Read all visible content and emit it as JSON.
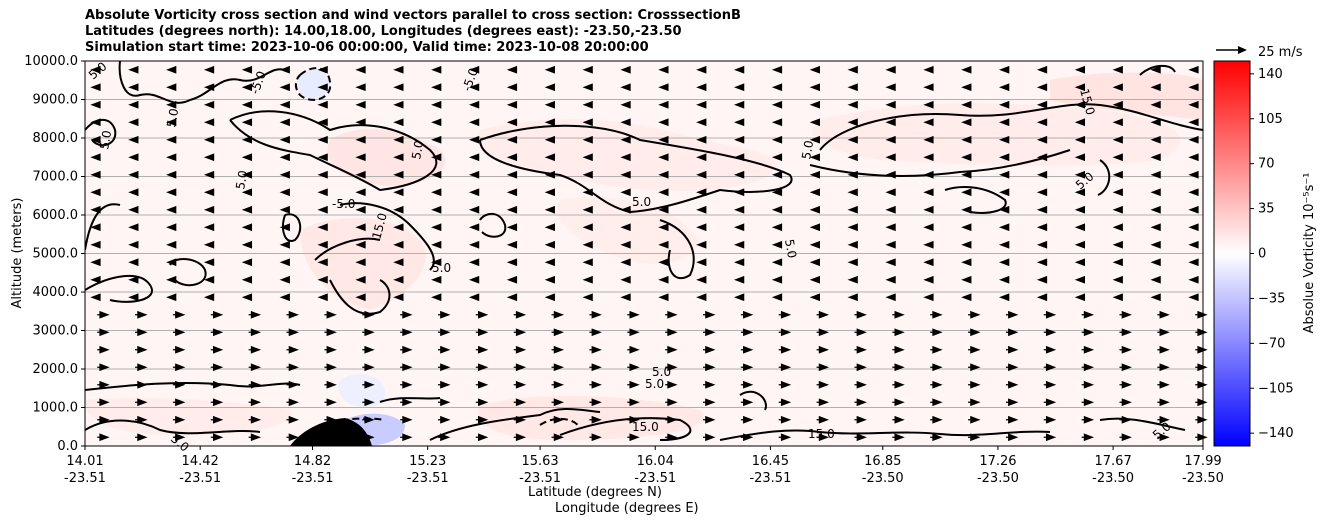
{
  "title_lines": [
    "Absolute Vorticity cross section and wind vectors parallel to cross section: CrosssectionB",
    "Latitudes (degrees north): 14.00,18.00, Longitudes (degrees east): -23.50,-23.50",
    "Simulation start time: 2023-10-06 00:00:00, Valid time: 2023-10-08 20:00:00"
  ],
  "quiver_key_label": "25 m/s",
  "chart_data": {
    "type": "contour",
    "ylabel": "Altitude (meters)",
    "xlabel_line1": "Latitude (degrees N)",
    "xlabel_line2": "Longitude (degrees E)",
    "ylim": [
      0,
      10000
    ],
    "yticks": [
      "0.0",
      "1000.0",
      "2000.0",
      "3000.0",
      "4000.0",
      "5000.0",
      "6000.0",
      "7000.0",
      "8000.0",
      "9000.0",
      "10000.0"
    ],
    "xticks": [
      {
        "lat": "14.01",
        "lon": "-23.51"
      },
      {
        "lat": "14.42",
        "lon": "-23.51"
      },
      {
        "lat": "14.82",
        "lon": "-23.51"
      },
      {
        "lat": "15.23",
        "lon": "-23.51"
      },
      {
        "lat": "15.63",
        "lon": "-23.51"
      },
      {
        "lat": "16.04",
        "lon": "-23.51"
      },
      {
        "lat": "16.45",
        "lon": "-23.51"
      },
      {
        "lat": "16.85",
        "lon": "-23.50"
      },
      {
        "lat": "17.26",
        "lon": "-23.50"
      },
      {
        "lat": "17.67",
        "lon": "-23.50"
      },
      {
        "lat": "17.99",
        "lon": "-23.50"
      }
    ],
    "grid": "horizontal",
    "colorbar": {
      "label": "Absolue Vorticity 10⁻⁵s⁻¹",
      "range": [
        -150,
        150
      ],
      "ticks": [
        "140",
        "105",
        "70",
        "35",
        "0",
        "−35",
        "−70",
        "−105",
        "−140"
      ],
      "colormap": "bwr"
    },
    "contour_labels": [
      "5.0",
      "-5.0",
      "15.0"
    ],
    "wind_lower_layer_top_m": 3500
  }
}
